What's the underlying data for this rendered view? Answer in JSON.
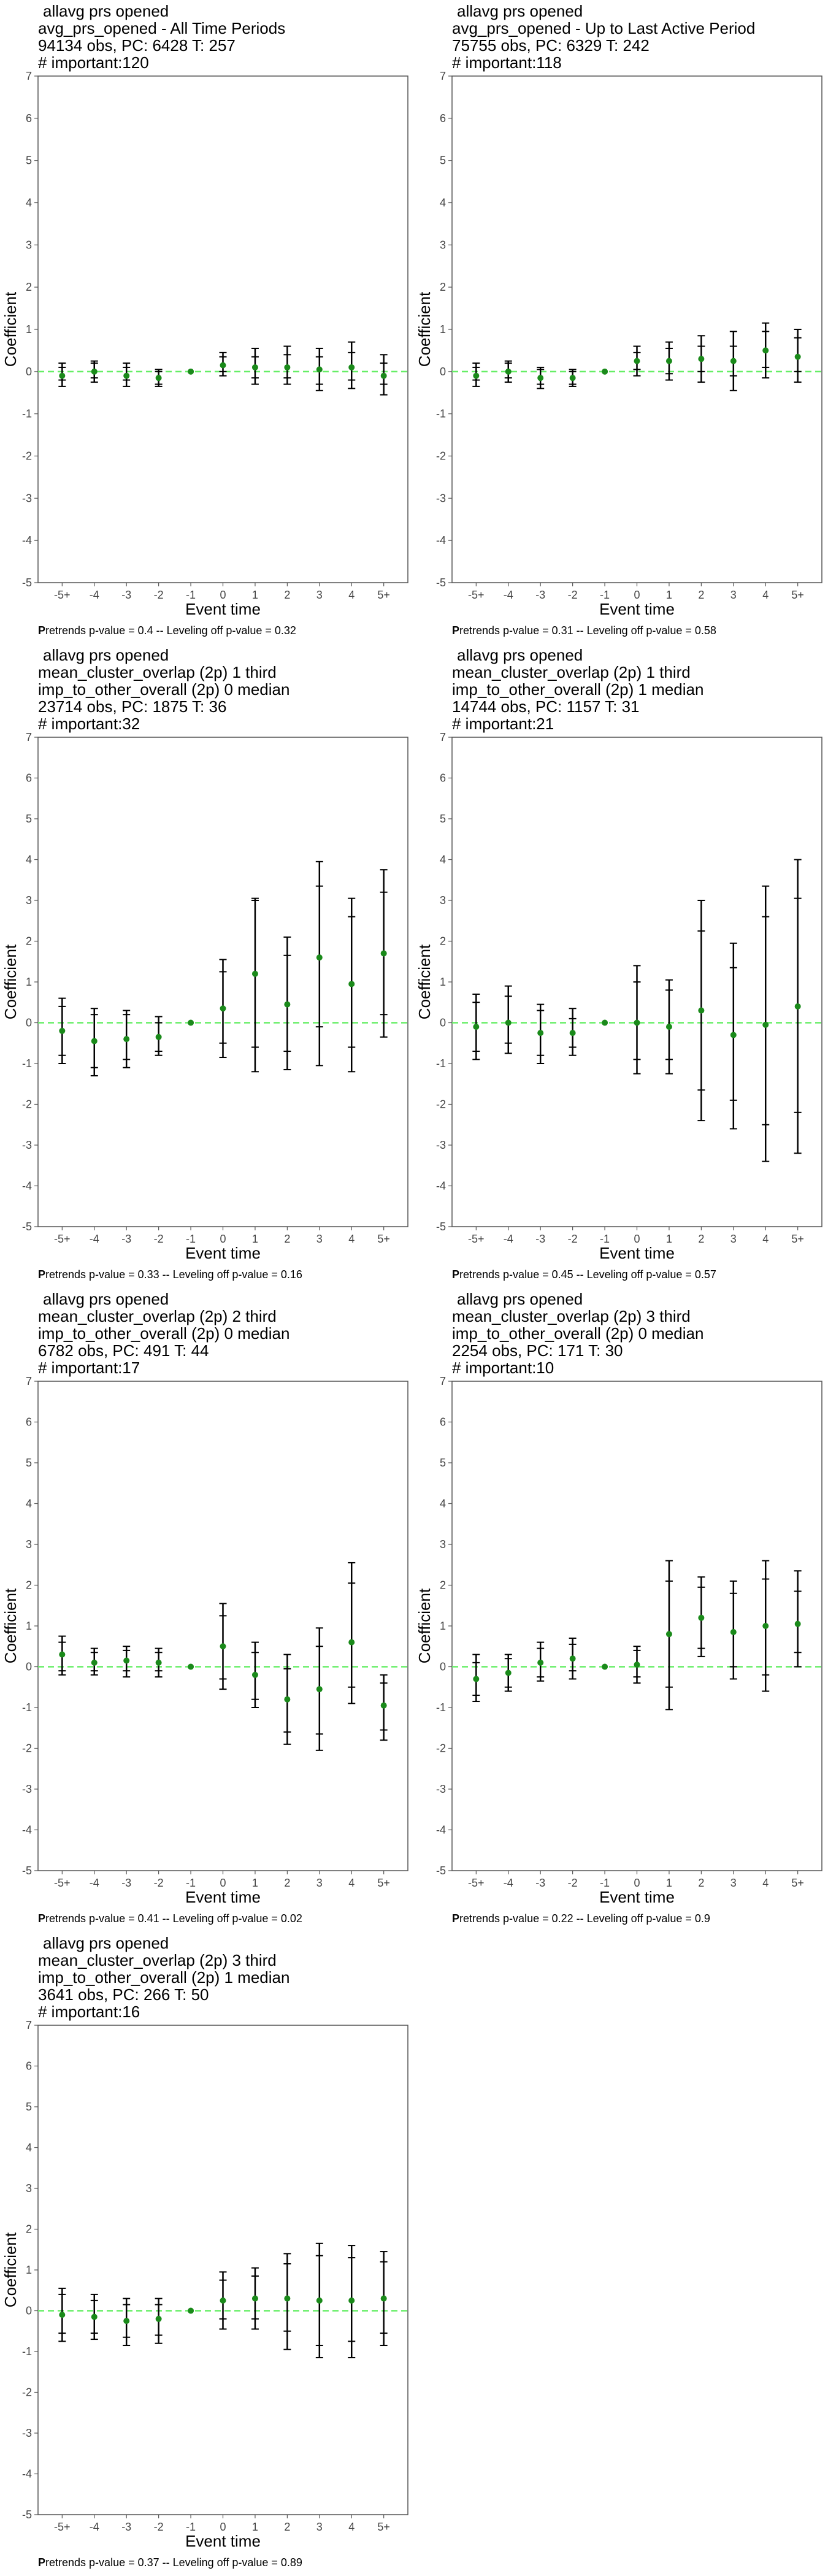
{
  "chart_data": [
    {
      "type": "scatter",
      "title_lines": [
        "allavg prs opened",
        "avg_prs_opened - All Time Periods",
        "94134 obs, PC: 6428 T: 257",
        "# important:120"
      ],
      "xlabel": "Event time",
      "ylabel": "Coefficient",
      "categories": [
        "-5+",
        "-4",
        "-3",
        "-2",
        "-1",
        "0",
        "1",
        "2",
        "3",
        "4",
        "5+"
      ],
      "ylim": [
        -5,
        7
      ],
      "y": [
        -0.1,
        0.0,
        -0.1,
        -0.15,
        0.0,
        0.15,
        0.1,
        0.1,
        0.05,
        0.1,
        -0.1
      ],
      "ci_outer": [
        [
          -0.35,
          0.2
        ],
        [
          -0.25,
          0.25
        ],
        [
          -0.35,
          0.2
        ],
        [
          -0.35,
          0.05
        ],
        [
          0,
          0
        ],
        [
          -0.1,
          0.45
        ],
        [
          -0.3,
          0.55
        ],
        [
          -0.3,
          0.6
        ],
        [
          -0.45,
          0.55
        ],
        [
          -0.4,
          0.7
        ],
        [
          -0.55,
          0.4
        ]
      ],
      "ci_inner": [
        [
          -0.2,
          0.1
        ],
        [
          -0.15,
          0.2
        ],
        [
          -0.2,
          0.1
        ],
        [
          -0.3,
          0.0
        ],
        [
          0,
          0
        ],
        [
          0.0,
          0.35
        ],
        [
          -0.15,
          0.35
        ],
        [
          -0.15,
          0.4
        ],
        [
          -0.3,
          0.35
        ],
        [
          -0.2,
          0.45
        ],
        [
          -0.3,
          0.2
        ]
      ],
      "footnote_bold": "P",
      "footnote": "retrends p-value = 0.4 -- Leveling off p-value = 0.32"
    },
    {
      "type": "scatter",
      "title_lines": [
        "allavg prs opened",
        "avg_prs_opened - Up to Last Active Period",
        "75755 obs, PC: 6329 T: 242",
        "# important:118"
      ],
      "xlabel": "Event time",
      "ylabel": "Coefficient",
      "categories": [
        "-5+",
        "-4",
        "-3",
        "-2",
        "-1",
        "0",
        "1",
        "2",
        "3",
        "4",
        "5+"
      ],
      "ylim": [
        -5,
        7
      ],
      "y": [
        -0.1,
        0.0,
        -0.15,
        -0.15,
        0.0,
        0.25,
        0.25,
        0.3,
        0.25,
        0.5,
        0.35
      ],
      "ci_outer": [
        [
          -0.35,
          0.2
        ],
        [
          -0.25,
          0.25
        ],
        [
          -0.4,
          0.1
        ],
        [
          -0.35,
          0.05
        ],
        [
          0,
          0
        ],
        [
          -0.1,
          0.6
        ],
        [
          -0.2,
          0.7
        ],
        [
          -0.25,
          0.85
        ],
        [
          -0.45,
          0.95
        ],
        [
          -0.15,
          1.15
        ],
        [
          -0.25,
          1.0
        ]
      ],
      "ci_inner": [
        [
          -0.2,
          0.1
        ],
        [
          -0.15,
          0.2
        ],
        [
          -0.3,
          0.05
        ],
        [
          -0.3,
          0.0
        ],
        [
          0,
          0
        ],
        [
          0.05,
          0.45
        ],
        [
          -0.05,
          0.55
        ],
        [
          0.0,
          0.6
        ],
        [
          -0.1,
          0.6
        ],
        [
          0.1,
          0.95
        ],
        [
          0.0,
          0.8
        ]
      ],
      "footnote_bold": "P",
      "footnote": "retrends p-value = 0.31 -- Leveling off p-value = 0.58"
    },
    {
      "type": "scatter",
      "title_lines": [
        "allavg prs opened",
        "mean_cluster_overlap (2p) 1 third",
        "imp_to_other_overall (2p) 0 median",
        "23714 obs, PC: 1875 T: 36",
        "# important:32"
      ],
      "xlabel": "Event time",
      "ylabel": "Coefficient",
      "categories": [
        "-5+",
        "-4",
        "-3",
        "-2",
        "-1",
        "0",
        "1",
        "2",
        "3",
        "4",
        "5+"
      ],
      "ylim": [
        -5,
        7
      ],
      "y": [
        -0.2,
        -0.45,
        -0.4,
        -0.35,
        0.0,
        0.35,
        1.2,
        0.45,
        1.6,
        0.95,
        1.7
      ],
      "ci_outer": [
        [
          -1.0,
          0.6
        ],
        [
          -1.3,
          0.35
        ],
        [
          -1.1,
          0.3
        ],
        [
          -0.8,
          0.15
        ],
        [
          0,
          0
        ],
        [
          -0.85,
          1.55
        ],
        [
          -1.2,
          3.05
        ],
        [
          -1.15,
          2.1
        ],
        [
          -1.05,
          3.95
        ],
        [
          -1.2,
          3.05
        ],
        [
          -0.35,
          3.75
        ]
      ],
      "ci_inner": [
        [
          -0.8,
          0.4
        ],
        [
          -1.1,
          0.2
        ],
        [
          -0.9,
          0.2
        ],
        [
          -0.7,
          0.0
        ],
        [
          0,
          0
        ],
        [
          -0.5,
          1.25
        ],
        [
          -0.6,
          3.0
        ],
        [
          -0.7,
          1.65
        ],
        [
          -0.1,
          3.35
        ],
        [
          -0.6,
          2.6
        ],
        [
          0.2,
          3.2
        ]
      ],
      "footnote_bold": "P",
      "footnote": "retrends p-value = 0.33 -- Leveling off p-value = 0.16"
    },
    {
      "type": "scatter",
      "title_lines": [
        "allavg prs opened",
        "mean_cluster_overlap (2p) 1 third",
        "imp_to_other_overall (2p) 1 median",
        "14744 obs, PC: 1157 T: 31",
        "# important:21"
      ],
      "xlabel": "Event time",
      "ylabel": "Coefficient",
      "categories": [
        "-5+",
        "-4",
        "-3",
        "-2",
        "-1",
        "0",
        "1",
        "2",
        "3",
        "4",
        "5+"
      ],
      "ylim": [
        -5,
        7
      ],
      "y": [
        -0.1,
        0.0,
        -0.25,
        -0.25,
        0.0,
        0.0,
        -0.1,
        0.3,
        -0.3,
        -0.05,
        0.4
      ],
      "ci_outer": [
        [
          -0.9,
          0.7
        ],
        [
          -0.75,
          0.9
        ],
        [
          -1.0,
          0.45
        ],
        [
          -0.8,
          0.35
        ],
        [
          0,
          0
        ],
        [
          -1.25,
          1.4
        ],
        [
          -1.25,
          1.05
        ],
        [
          -2.4,
          3.0
        ],
        [
          -2.6,
          1.95
        ],
        [
          -3.4,
          3.35
        ],
        [
          -3.2,
          4.0
        ]
      ],
      "ci_inner": [
        [
          -0.7,
          0.5
        ],
        [
          -0.5,
          0.65
        ],
        [
          -0.8,
          0.3
        ],
        [
          -0.6,
          0.1
        ],
        [
          0,
          0
        ],
        [
          -0.9,
          1.0
        ],
        [
          -0.9,
          0.8
        ],
        [
          -1.65,
          2.25
        ],
        [
          -1.9,
          1.35
        ],
        [
          -2.5,
          2.6
        ],
        [
          -2.2,
          3.05
        ]
      ],
      "footnote_bold": "P",
      "footnote": "retrends p-value = 0.45 -- Leveling off p-value = 0.57"
    },
    {
      "type": "scatter",
      "title_lines": [
        "allavg prs opened",
        "mean_cluster_overlap (2p) 2 third",
        "imp_to_other_overall (2p) 0 median",
        "6782 obs, PC: 491 T: 44",
        "# important:17"
      ],
      "xlabel": "Event time",
      "ylabel": "Coefficient",
      "categories": [
        "-5+",
        "-4",
        "-3",
        "-2",
        "-1",
        "0",
        "1",
        "2",
        "3",
        "4",
        "5+"
      ],
      "ylim": [
        -5,
        7
      ],
      "y": [
        0.3,
        0.1,
        0.15,
        0.1,
        0.0,
        0.5,
        -0.2,
        -0.8,
        -0.55,
        0.6,
        -0.95
      ],
      "ci_outer": [
        [
          -0.2,
          0.75
        ],
        [
          -0.2,
          0.45
        ],
        [
          -0.25,
          0.5
        ],
        [
          -0.25,
          0.45
        ],
        [
          0,
          0
        ],
        [
          -0.55,
          1.55
        ],
        [
          -1.0,
          0.6
        ],
        [
          -1.9,
          0.3
        ],
        [
          -2.05,
          0.95
        ],
        [
          -0.9,
          2.55
        ],
        [
          -1.8,
          -0.2
        ]
      ],
      "ci_inner": [
        [
          -0.1,
          0.6
        ],
        [
          -0.1,
          0.35
        ],
        [
          -0.1,
          0.4
        ],
        [
          -0.1,
          0.35
        ],
        [
          0,
          0
        ],
        [
          -0.3,
          1.25
        ],
        [
          -0.8,
          0.35
        ],
        [
          -1.6,
          -0.05
        ],
        [
          -1.65,
          0.5
        ],
        [
          -0.5,
          2.05
        ],
        [
          -1.55,
          -0.4
        ]
      ],
      "footnote_bold": "P",
      "footnote": "retrends p-value = 0.41 -- Leveling off p-value = 0.02"
    },
    {
      "type": "scatter",
      "title_lines": [
        "allavg prs opened",
        "mean_cluster_overlap (2p) 3 third",
        "imp_to_other_overall (2p) 0 median",
        "2254 obs, PC: 171 T: 30",
        "# important:10"
      ],
      "xlabel": "Event time",
      "ylabel": "Coefficient",
      "categories": [
        "-5+",
        "-4",
        "-3",
        "-2",
        "-1",
        "0",
        "1",
        "2",
        "3",
        "4",
        "5+"
      ],
      "ylim": [
        -5,
        7
      ],
      "y": [
        -0.3,
        -0.15,
        0.1,
        0.2,
        0.0,
        0.05,
        0.8,
        1.2,
        0.85,
        1.0,
        1.05
      ],
      "ci_outer": [
        [
          -0.85,
          0.3
        ],
        [
          -0.6,
          0.3
        ],
        [
          -0.35,
          0.6
        ],
        [
          -0.3,
          0.7
        ],
        [
          0,
          0
        ],
        [
          -0.4,
          0.5
        ],
        [
          -1.05,
          2.6
        ],
        [
          0.25,
          2.2
        ],
        [
          -0.3,
          2.1
        ],
        [
          -0.6,
          2.6
        ],
        [
          0.0,
          2.35
        ]
      ],
      "ci_inner": [
        [
          -0.7,
          0.1
        ],
        [
          -0.5,
          0.2
        ],
        [
          -0.25,
          0.45
        ],
        [
          -0.1,
          0.55
        ],
        [
          0,
          0
        ],
        [
          -0.25,
          0.4
        ],
        [
          -0.5,
          2.1
        ],
        [
          0.45,
          1.95
        ],
        [
          0.0,
          1.8
        ],
        [
          -0.2,
          2.15
        ],
        [
          0.35,
          1.85
        ]
      ],
      "footnote_bold": "P",
      "footnote": "retrends p-value = 0.22 -- Leveling off p-value = 0.9"
    },
    {
      "type": "scatter",
      "title_lines": [
        "allavg prs opened",
        "mean_cluster_overlap (2p) 3 third",
        "imp_to_other_overall (2p) 1 median",
        "3641 obs, PC: 266 T: 50",
        "# important:16"
      ],
      "xlabel": "Event time",
      "ylabel": "Coefficient",
      "categories": [
        "-5+",
        "-4",
        "-3",
        "-2",
        "-1",
        "0",
        "1",
        "2",
        "3",
        "4",
        "5+"
      ],
      "ylim": [
        -5,
        7
      ],
      "y": [
        -0.1,
        -0.15,
        -0.25,
        -0.2,
        0.0,
        0.25,
        0.3,
        0.3,
        0.25,
        0.25,
        0.3
      ],
      "ci_outer": [
        [
          -0.75,
          0.55
        ],
        [
          -0.7,
          0.4
        ],
        [
          -0.85,
          0.3
        ],
        [
          -0.8,
          0.3
        ],
        [
          0,
          0
        ],
        [
          -0.45,
          0.95
        ],
        [
          -0.45,
          1.05
        ],
        [
          -0.95,
          1.4
        ],
        [
          -1.15,
          1.65
        ],
        [
          -1.15,
          1.6
        ],
        [
          -0.85,
          1.45
        ]
      ],
      "ci_inner": [
        [
          -0.55,
          0.4
        ],
        [
          -0.55,
          0.25
        ],
        [
          -0.65,
          0.15
        ],
        [
          -0.6,
          0.15
        ],
        [
          0,
          0
        ],
        [
          -0.2,
          0.75
        ],
        [
          -0.2,
          0.85
        ],
        [
          -0.5,
          1.15
        ],
        [
          -0.85,
          1.35
        ],
        [
          -0.75,
          1.3
        ],
        [
          -0.55,
          1.2
        ]
      ],
      "footnote_bold": "P",
      "footnote": "retrends p-value = 0.37 -- Leveling off p-value = 0.89"
    }
  ],
  "colors": {
    "point": "#1a8a1a",
    "zero_line": "#66ee66",
    "errorbar": "#000000",
    "axis": "#555555"
  }
}
